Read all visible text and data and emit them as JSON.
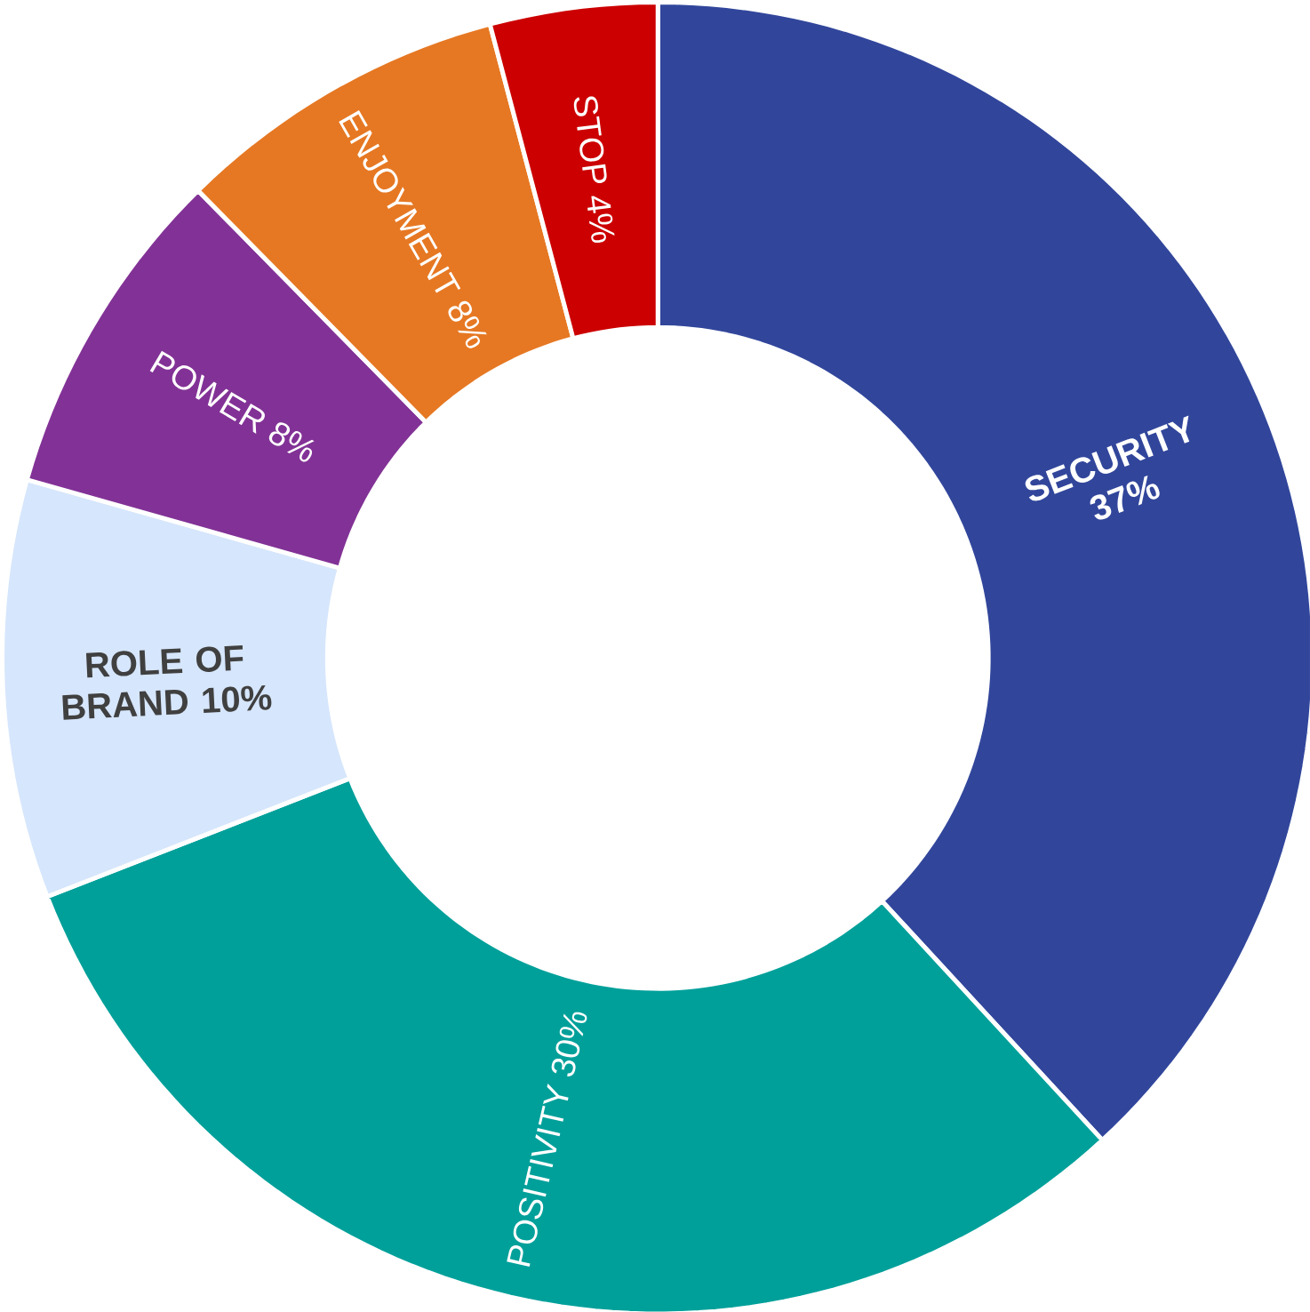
{
  "chart_data": {
    "type": "donut",
    "categories": [
      "SECURITY",
      "POSITIVITY",
      "ROLE OF BRAND",
      "POWER",
      "ENJOYMENT",
      "STOP"
    ],
    "values": [
      37,
      30,
      10,
      8,
      8,
      4
    ],
    "colors": [
      "#31469b",
      "#00a09a",
      "#d6e6fc",
      "#823296",
      "#e67823",
      "#cc0000"
    ],
    "value_labels": [
      "37%",
      "30%",
      "10%",
      "8%",
      "8%",
      "4%"
    ]
  }
}
